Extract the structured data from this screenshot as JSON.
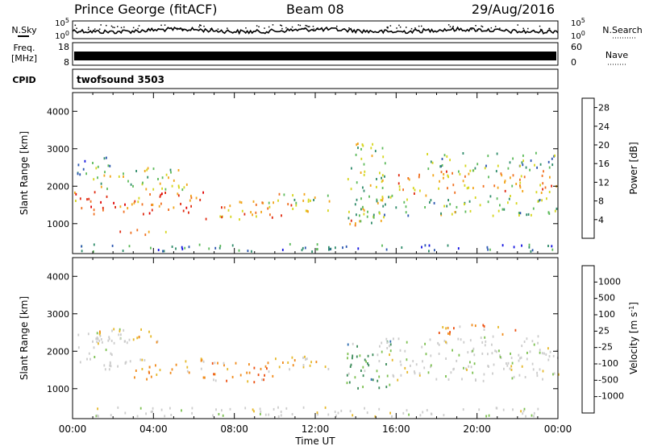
{
  "header": {
    "station": "Prince George (fitACF)",
    "beam": "Beam 08",
    "date": "29/Aug/2016"
  },
  "side_labels": {
    "nsky": "N.Sky",
    "freq_line1": "Freq.",
    "freq_line2": "[MHz]",
    "cpid": "CPID",
    "nsearch": "N.Search",
    "nave": "Nave"
  },
  "top_strips": {
    "noise_ticks_left": [
      "10^5",
      "10^0"
    ],
    "noise_ticks_right": [
      "10^5",
      "10^0"
    ],
    "freq_ticks_left": [
      "18",
      "8"
    ],
    "nave_ticks_right": [
      "60",
      "0"
    ],
    "cpid_value": "twofsound 3503"
  },
  "colors": {
    "power": [
      "#1010e0",
      "#2a55b0",
      "#2f8c6a",
      "#5cba5a",
      "#d6d61e",
      "#f2a51a",
      "#f07020",
      "#e02a10",
      "#e00000"
    ],
    "velocity": [
      "#2020c8",
      "#2e6cb0",
      "#3a8a58",
      "#7cc050",
      "#cccccc",
      "#e6b82a",
      "#f08a1a",
      "#ec5010",
      "#e01010"
    ],
    "scatter_gray": "#c8c8c8"
  },
  "chart_data": [
    {
      "type": "heatmap",
      "panel": "power",
      "ylabel": "Slant Range [km]",
      "xlabel": "",
      "xlim": [
        0,
        24
      ],
      "ylim": [
        200,
        4500
      ],
      "yticks": [
        "1000",
        "2000",
        "3000",
        "4000"
      ],
      "colorbar": {
        "label": "Power [dB]",
        "ticks": [
          "4",
          "8",
          "12",
          "16",
          "20",
          "24",
          "28"
        ],
        "range": [
          0,
          30
        ]
      },
      "regions": [
        {
          "t0": 0.0,
          "t1": 6.5,
          "r0": 1250,
          "r1": 1850,
          "v": 22
        },
        {
          "t0": 1.0,
          "t1": 6.0,
          "r0": 1900,
          "r1": 2500,
          "v": 14
        },
        {
          "t0": 0.2,
          "t1": 2.0,
          "r0": 2300,
          "r1": 2800,
          "v": 9
        },
        {
          "t0": 6.5,
          "t1": 10.8,
          "r0": 1100,
          "r1": 1600,
          "v": 21
        },
        {
          "t0": 9.5,
          "t1": 12.8,
          "r0": 1300,
          "r1": 1800,
          "v": 15
        },
        {
          "t0": 2.3,
          "t1": 5.0,
          "r0": 700,
          "r1": 850,
          "v": 19
        },
        {
          "t0": 13.3,
          "t1": 14.0,
          "r0": 850,
          "r1": 1150,
          "v": 25
        },
        {
          "t0": 13.5,
          "t1": 15.5,
          "r0": 1000,
          "r1": 3200,
          "v": 13
        },
        {
          "t0": 15.0,
          "t1": 24.0,
          "r0": 1200,
          "r1": 1750,
          "v": 12
        },
        {
          "t0": 16.0,
          "t1": 24.0,
          "r0": 1800,
          "r1": 2400,
          "v": 19
        },
        {
          "t0": 17.5,
          "t1": 24.0,
          "r0": 2400,
          "r1": 2900,
          "v": 10
        },
        {
          "t0": 0.0,
          "t1": 24.0,
          "r0": 250,
          "r1": 450,
          "v": 7
        }
      ]
    },
    {
      "type": "heatmap",
      "panel": "velocity",
      "ylabel": "Slant Range [km]",
      "xlabel": "Time UT",
      "xlim": [
        0,
        24
      ],
      "ylim": [
        200,
        4500
      ],
      "yticks": [
        "1000",
        "2000",
        "3000",
        "4000"
      ],
      "xticks": [
        "00:00",
        "04:00",
        "08:00",
        "12:00",
        "16:00",
        "20:00",
        "00:00"
      ],
      "colorbar": {
        "label": "Velocity [m s^-1]",
        "ticks": [
          "1000",
          "500",
          "100",
          "25",
          "-25",
          "-100",
          "-500",
          "-1000"
        ]
      },
      "regions": [
        {
          "t0": 0.0,
          "t1": 3.0,
          "r0": 1500,
          "r1": 2600,
          "v": 4
        },
        {
          "t0": 3.0,
          "t1": 6.5,
          "r0": 1250,
          "r1": 1850,
          "v": 6
        },
        {
          "t0": 6.5,
          "t1": 10.5,
          "r0": 1150,
          "r1": 1700,
          "v": 6
        },
        {
          "t0": 10.0,
          "t1": 12.8,
          "r0": 1400,
          "r1": 1850,
          "v": 5
        },
        {
          "t0": 1.0,
          "t1": 4.5,
          "r0": 2200,
          "r1": 2600,
          "v": 5
        },
        {
          "t0": 13.5,
          "t1": 15.8,
          "r0": 1000,
          "r1": 2300,
          "v": 2
        },
        {
          "t0": 15.0,
          "t1": 24.0,
          "r0": 1200,
          "r1": 2400,
          "v": 4
        },
        {
          "t0": 18.0,
          "t1": 22.0,
          "r0": 2400,
          "r1": 2700,
          "v": 6
        },
        {
          "t0": 0.0,
          "t1": 24.0,
          "r0": 250,
          "r1": 500,
          "v": 4
        }
      ]
    }
  ]
}
